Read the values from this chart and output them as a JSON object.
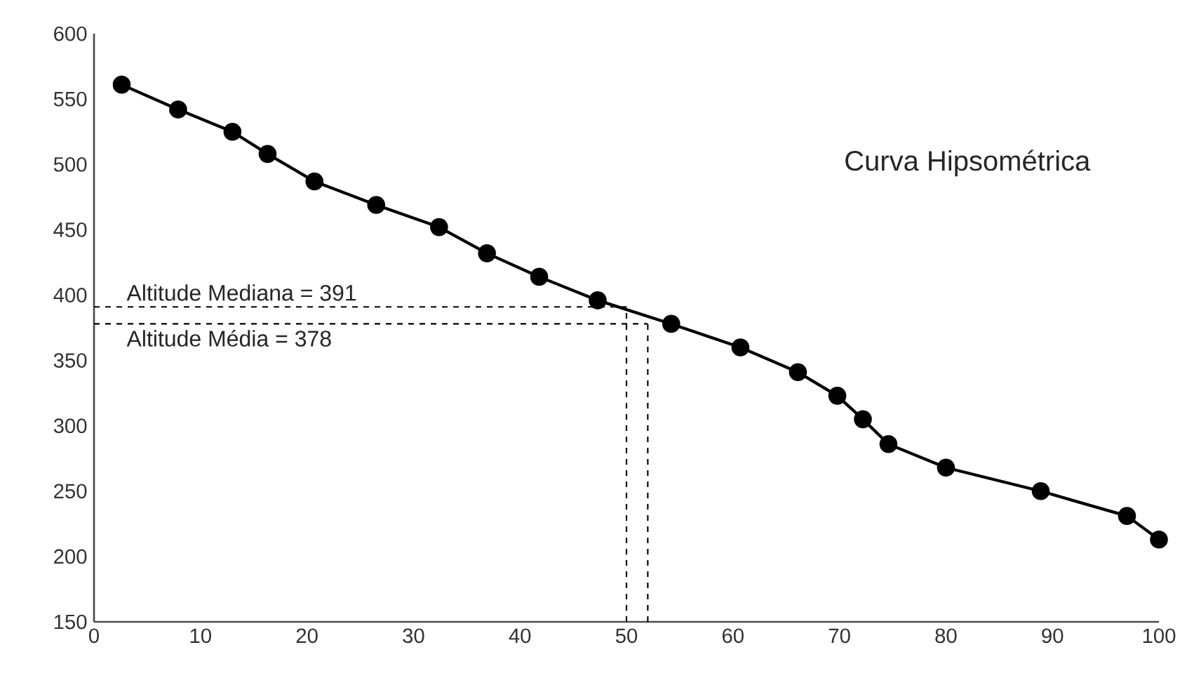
{
  "chart_data": {
    "type": "line",
    "title": "Curva Hipsométrica",
    "x": [
      2.6,
      7.9,
      13.0,
      16.3,
      20.7,
      26.5,
      32.4,
      36.9,
      41.8,
      47.3,
      54.2,
      60.7,
      66.1,
      69.8,
      72.2,
      74.6,
      80.0,
      88.9,
      97.0,
      100
    ],
    "series": [
      {
        "color": "#000000",
        "values": [
          561,
          542,
          525,
          508,
          487,
          469,
          452,
          432,
          414,
          396,
          378,
          360,
          341,
          323,
          305,
          286,
          268,
          250,
          231,
          213
        ]
      }
    ],
    "xlim": [
      0,
      100
    ],
    "xticks": [
      0,
      10,
      20,
      30,
      40,
      50,
      60,
      70,
      80,
      90,
      100
    ],
    "ylim": [
      150,
      600
    ],
    "yticks": [
      150,
      200,
      250,
      300,
      350,
      400,
      450,
      500,
      550,
      600
    ],
    "marker": "circle",
    "line_style": "solid",
    "ref_lines": [
      {
        "axis": "y",
        "value": 391,
        "label": "Altitude Mediana = 391",
        "color": "#000000",
        "line_style": "dashed"
      },
      {
        "axis": "y",
        "value": 378,
        "label": "Altitude Média = 378",
        "color": "#000000",
        "line_style": "dashed"
      },
      {
        "axis": "x",
        "value": 50,
        "color": "#000000",
        "line_style": "dashed"
      },
      {
        "axis": "x",
        "value": 52,
        "color": "#000000",
        "line_style": "dashed"
      }
    ]
  }
}
